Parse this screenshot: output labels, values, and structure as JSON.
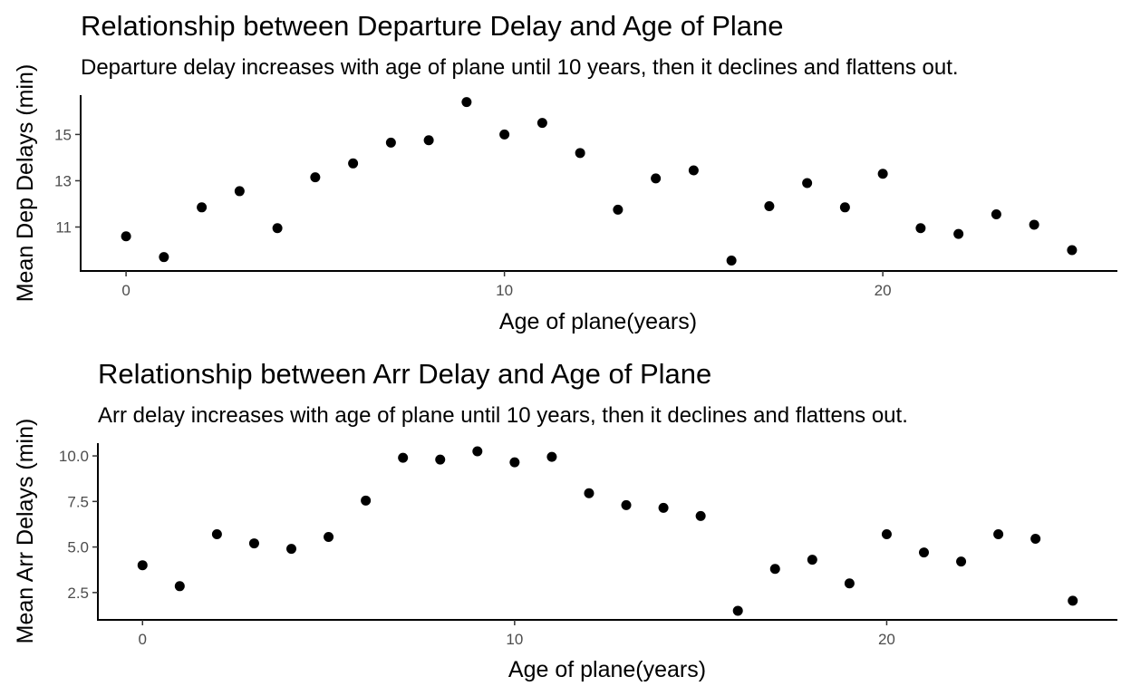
{
  "colors": {
    "point": "#000000",
    "axis": "#000000",
    "tick_label": "#4d4d4d",
    "background": "#ffffff"
  },
  "chart_data": [
    {
      "type": "scatter",
      "title": "Relationship between Departure Delay and Age of Plane",
      "subtitle": "Departure delay increases with age of plane until 10 years, then it declines and flattens out.",
      "xlabel": "Age of plane(years)",
      "ylabel": "Mean Dep Delays (min)",
      "xlim": [
        -1.2,
        26.2
      ],
      "ylim": [
        9.1,
        16.7
      ],
      "xticks": [
        0,
        10,
        20
      ],
      "xtick_labels": [
        "0",
        "10",
        "20"
      ],
      "yticks": [
        11,
        13,
        15
      ],
      "ytick_labels": [
        "11",
        "13",
        "15"
      ],
      "grid": false,
      "x": [
        0,
        1,
        2,
        3,
        4,
        5,
        6,
        7,
        8,
        9,
        10,
        11,
        12,
        13,
        14,
        15,
        16,
        17,
        18,
        19,
        20,
        21,
        22,
        23,
        24,
        25
      ],
      "y": [
        10.6,
        9.7,
        11.85,
        12.55,
        10.95,
        13.15,
        13.75,
        14.65,
        14.75,
        16.4,
        15.0,
        15.5,
        14.2,
        11.75,
        13.1,
        13.45,
        9.55,
        11.9,
        12.9,
        11.85,
        13.3,
        10.95,
        10.7,
        11.55,
        11.1,
        10.0
      ]
    },
    {
      "type": "scatter",
      "title": "Relationship between Arr Delay and Age of Plane",
      "subtitle": "Arr delay increases with age of plane until 10 years, then it declines and flattens out.",
      "xlabel": "Age of plane(years)",
      "ylabel": "Mean Arr Delays (min)",
      "xlim": [
        -1.2,
        26.2
      ],
      "ylim": [
        1.0,
        10.7
      ],
      "xticks": [
        0,
        10,
        20
      ],
      "xtick_labels": [
        "0",
        "10",
        "20"
      ],
      "yticks": [
        2.5,
        5.0,
        7.5,
        10.0
      ],
      "ytick_labels": [
        "2.5",
        "5.0",
        "7.5",
        "10.0"
      ],
      "grid": false,
      "x": [
        0,
        1,
        2,
        3,
        4,
        5,
        6,
        7,
        8,
        9,
        10,
        11,
        12,
        13,
        14,
        15,
        16,
        17,
        18,
        19,
        20,
        21,
        22,
        23,
        24,
        25
      ],
      "y": [
        4.0,
        2.85,
        5.7,
        5.2,
        4.9,
        5.55,
        7.55,
        9.9,
        9.8,
        10.25,
        9.65,
        9.95,
        7.95,
        7.3,
        7.15,
        6.7,
        1.5,
        3.8,
        4.3,
        3.0,
        5.7,
        4.7,
        4.2,
        5.7,
        5.45,
        2.05
      ]
    }
  ]
}
